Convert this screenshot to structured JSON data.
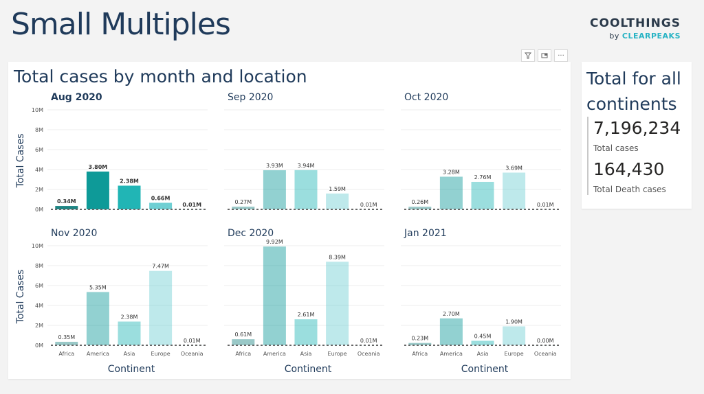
{
  "page": {
    "title": "Small Multiples"
  },
  "brand": {
    "top": "COOLTHINGS",
    "by": "by",
    "accent": "CLEARPEAKS"
  },
  "toolbar": {
    "filter_icon": "filter-icon",
    "focus_icon": "focus-mode-icon",
    "more_label": "···"
  },
  "kpi": {
    "title_line1": "Total for all",
    "title_line2": "continents",
    "total_cases": "7,196,234",
    "total_cases_label": "Total cases",
    "total_deaths": "164,430",
    "total_deaths_label": "Total Death cases"
  },
  "colors": {
    "Africa": "#1d8583",
    "America": "#0e9a98",
    "Asia": "#21b5b5",
    "Europe": "#6fcfd3",
    "Oceania": "#b9e7e9",
    "title": "#1f3a5a",
    "baseline": "#666666"
  },
  "chart_data": {
    "type": "bar",
    "title": "Total cases by month and location",
    "xlabel": "Continent",
    "ylabel": "Total Cases",
    "ylim": [
      0,
      10
    ],
    "yticks": [
      "0M",
      "2M",
      "4M",
      "6M",
      "8M",
      "10M"
    ],
    "categories": [
      "Africa",
      "America",
      "Asia",
      "Europe",
      "Oceania"
    ],
    "grid": true,
    "panels": [
      {
        "name": "Aug 2020",
        "highlighted": true,
        "values": [
          0.34,
          3.8,
          2.38,
          0.66,
          0.01
        ],
        "labels": [
          "0.34M",
          "3.80M",
          "2.38M",
          "0.66M",
          "0.01M"
        ]
      },
      {
        "name": "Sep 2020",
        "highlighted": false,
        "values": [
          0.27,
          3.93,
          3.94,
          1.59,
          0.01
        ],
        "labels": [
          "0.27M",
          "3.93M",
          "3.94M",
          "1.59M",
          "0.01M"
        ]
      },
      {
        "name": "Oct 2020",
        "highlighted": false,
        "values": [
          0.26,
          3.28,
          2.76,
          3.69,
          0.01
        ],
        "labels": [
          "0.26M",
          "3.28M",
          "2.76M",
          "3.69M",
          "0.01M"
        ]
      },
      {
        "name": "Nov 2020",
        "highlighted": false,
        "values": [
          0.35,
          5.35,
          2.38,
          7.47,
          0.01
        ],
        "labels": [
          "0.35M",
          "5.35M",
          "2.38M",
          "7.47M",
          "0.01M"
        ]
      },
      {
        "name": "Dec 2020",
        "highlighted": false,
        "values": [
          0.61,
          9.92,
          2.61,
          8.39,
          0.01
        ],
        "labels": [
          "0.61M",
          "9.92M",
          "2.61M",
          "8.39M",
          "0.01M"
        ]
      },
      {
        "name": "Jan 2021",
        "highlighted": false,
        "values": [
          0.23,
          2.7,
          0.45,
          1.9,
          0.0
        ],
        "labels": [
          "0.23M",
          "2.70M",
          "0.45M",
          "1.90M",
          "0.00M"
        ]
      }
    ]
  }
}
